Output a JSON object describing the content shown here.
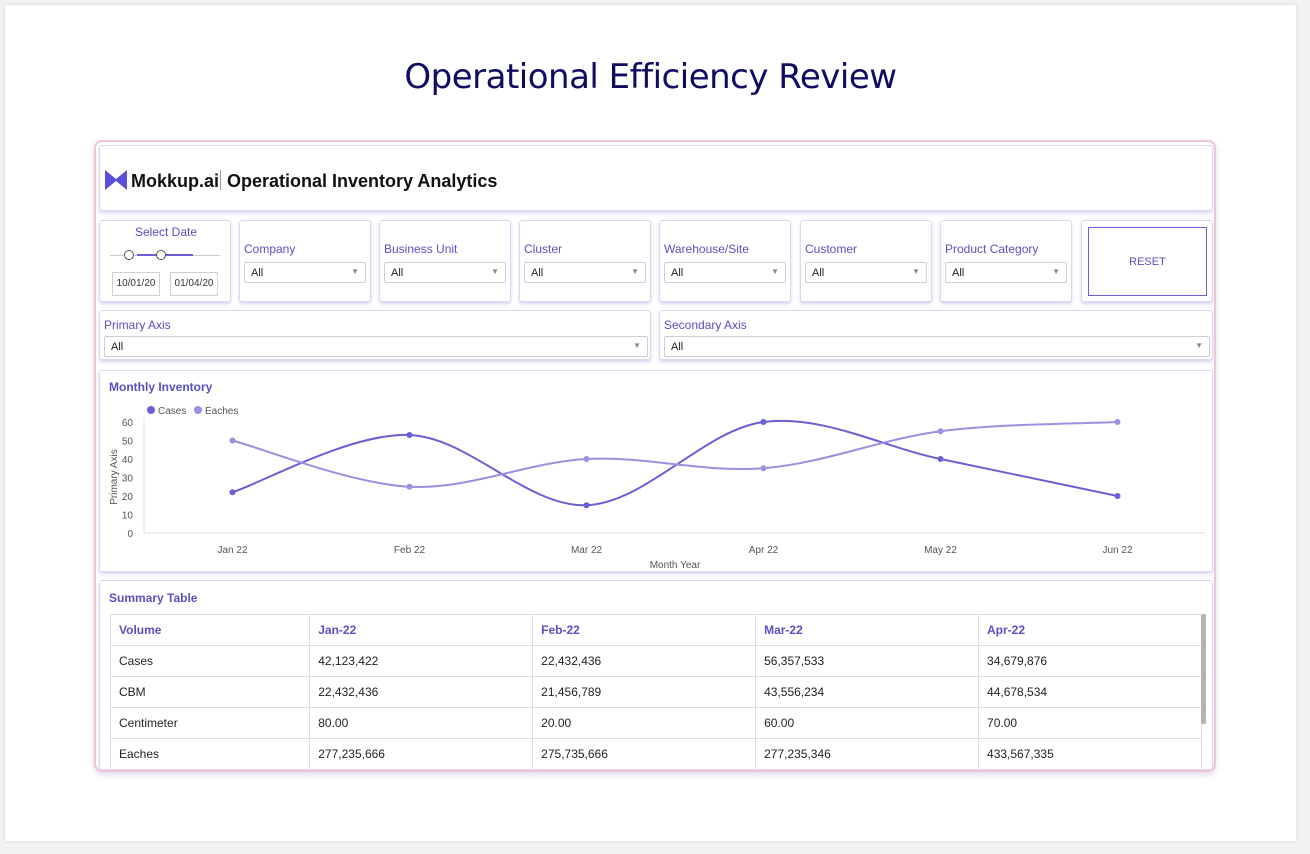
{
  "page_title": "Operational Efficiency Review",
  "header": {
    "brand": "Mokkup.ai",
    "app_title": "Operational Inventory Analytics",
    "logo_color": "#5a4fd8"
  },
  "date_filter": {
    "label": "Select Date",
    "start": "10/01/20",
    "end": "01/04/20"
  },
  "filters": [
    {
      "label": "Company",
      "value": "All"
    },
    {
      "label": "Business Unit",
      "value": "All"
    },
    {
      "label": "Cluster",
      "value": "All"
    },
    {
      "label": "Warehouse/Site",
      "value": "All"
    },
    {
      "label": "Customer",
      "value": "All"
    },
    {
      "label": "Product Category",
      "value": "All"
    }
  ],
  "reset_label": "RESET",
  "axis_filters": {
    "primary": {
      "label": "Primary Axis",
      "value": "All"
    },
    "secondary": {
      "label": "Secondary Axis",
      "value": "All"
    }
  },
  "chart_title": "Monthly Inventory",
  "chart_data": {
    "type": "line",
    "categories": [
      "Jan 22",
      "Feb 22",
      "Mar 22",
      "Apr 22",
      "May 22",
      "Jun 22"
    ],
    "series": [
      {
        "name": "Cases",
        "values": [
          22,
          53,
          15,
          60,
          40,
          20
        ],
        "color": "#6a5fd3"
      },
      {
        "name": "Eaches",
        "values": [
          50,
          25,
          40,
          35,
          55,
          60
        ],
        "color": "#9a90e0"
      }
    ],
    "yticks": [
      0,
      10,
      20,
      30,
      40,
      50,
      60
    ],
    "ylim": [
      0,
      60
    ],
    "xlabel": "Month Year",
    "ylabel": "Primary Axis",
    "legend": "top-left"
  },
  "summary": {
    "title": "Summary Table",
    "headers": [
      "Volume",
      "Jan-22",
      "Feb-22",
      "Mar-22",
      "Apr-22"
    ],
    "rows": [
      [
        "Cases",
        "42,123,422",
        "22,432,436",
        "56,357,533",
        "34,679,876"
      ],
      [
        "CBM",
        "22,432,436",
        "21,456,789",
        "43,556,234",
        "44,678,534"
      ],
      [
        "Centimeter",
        "80.00",
        "20.00",
        "60.00",
        "70.00"
      ],
      [
        "Eaches",
        "277,235,666",
        "275,735,666",
        "277,235,346",
        "433,567,335"
      ]
    ]
  }
}
